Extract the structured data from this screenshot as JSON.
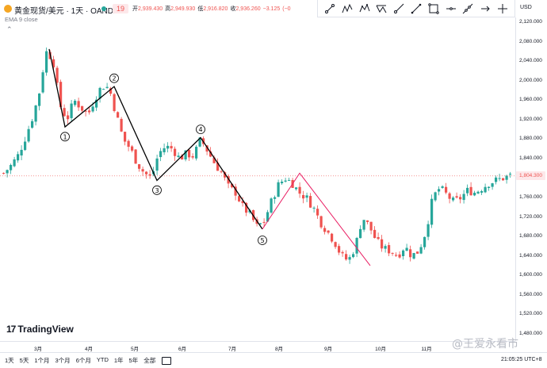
{
  "header": {
    "symbol": "黄金现货/美元 · 1天 · OANDA",
    "change_badge": "19",
    "ohlc": [
      {
        "label": "开",
        "value": "2,939.430"
      },
      {
        "label": "高",
        "value": "2,949.930"
      },
      {
        "label": "低",
        "value": "2,916.820"
      },
      {
        "label": "收",
        "value": "2,936.260"
      },
      {
        "label": "",
        "value": "−3.125"
      },
      {
        "label": "",
        "value": "(−0"
      }
    ],
    "indicator": "EMA 9 close",
    "collapse": "⌃"
  },
  "toolbar": {
    "tools": [
      "trend-line-tool",
      "xabcd-pattern-tool",
      "elliott-wave-tool",
      "abcd-pattern-tool",
      "ray-tool",
      "info-line-tool",
      "rectangle-tool",
      "horizontal-line-tool",
      "extended-line-tool",
      "arrow-tool",
      "crossline-tool"
    ]
  },
  "price_axis": {
    "currency": "USD",
    "ticks": [
      "2,120.000",
      "2,080.000",
      "2,040.000",
      "2,000.000",
      "1,960.000",
      "1,920.000",
      "1,880.000",
      "1,840.000",
      "1,800.000",
      "1,760.000",
      "1,720.000",
      "1,680.000",
      "1,640.000",
      "1,600.000",
      "1,560.000",
      "1,520.000",
      "1,480.000"
    ],
    "last_price": "1,804.300"
  },
  "chart_data": {
    "type": "candlestick",
    "ylim": [
      1465,
      2130
    ],
    "y_ticks": [
      2120,
      2080,
      2040,
      2000,
      1960,
      1920,
      1880,
      1840,
      1800,
      1760,
      1720,
      1680,
      1640,
      1600,
      1560,
      1520,
      1480
    ],
    "x_months": [
      "3月",
      "4月",
      "5月",
      "6月",
      "7月",
      "8月",
      "9月",
      "10月",
      "11月"
    ],
    "up_color": "#26a69a",
    "down_color": "#ef5350",
    "last_price": 1804.3,
    "path_price": [
      1810,
      1825,
      1845,
      1880,
      1920,
      1970,
      2060,
      2045,
      1950,
      1920,
      1960,
      1945,
      1930,
      1965,
      1990,
      1985,
      1930,
      1880,
      1860,
      1830,
      1810,
      1800,
      1850,
      1865,
      1860,
      1840,
      1850,
      1845,
      1880,
      1855,
      1830,
      1810,
      1780,
      1770,
      1740,
      1725,
      1700,
      1710,
      1750,
      1785,
      1800,
      1790,
      1770,
      1760,
      1740,
      1710,
      1690,
      1670,
      1640,
      1630,
      1660,
      1720,
      1700,
      1670,
      1655,
      1650,
      1640,
      1660,
      1640,
      1650,
      1690,
      1760,
      1780,
      1765,
      1750,
      1760,
      1775,
      1770,
      1780,
      1790,
      1795,
      1800,
      1805
    ],
    "wave_main": {
      "points": [
        [
          2065,
          62
        ],
        [
          1905,
          82
        ],
        [
          1988,
          144
        ],
        [
          1795,
          198
        ],
        [
          1883,
          253
        ],
        [
          1695,
          331
        ]
      ],
      "labels": [
        "①",
        "②",
        "③",
        "④",
        "⑤"
      ],
      "label_points": [
        [
          1885,
          82
        ],
        [
          2005,
          144
        ],
        [
          1775,
          198
        ],
        [
          1900,
          253
        ],
        [
          1672,
          331
        ]
      ]
    },
    "wave_correction": {
      "points": [
        [
          1695,
          331
        ],
        [
          1810,
          378
        ],
        [
          1620,
          467
        ]
      ]
    }
  },
  "time_axis": {
    "months": [
      "3月",
      "4月",
      "5月",
      "6月",
      "7月",
      "8月",
      "9月",
      "10月",
      "11月"
    ]
  },
  "logo": {
    "mark": "17",
    "text": "TradingView"
  },
  "bottom_bar": {
    "ranges": [
      "1天",
      "5天",
      "1个月",
      "3个月",
      "6个月",
      "YTD",
      "1年",
      "5年",
      "全部"
    ],
    "clock": "21:05:25 UTC+8"
  },
  "watermark": "@王爱永看市"
}
